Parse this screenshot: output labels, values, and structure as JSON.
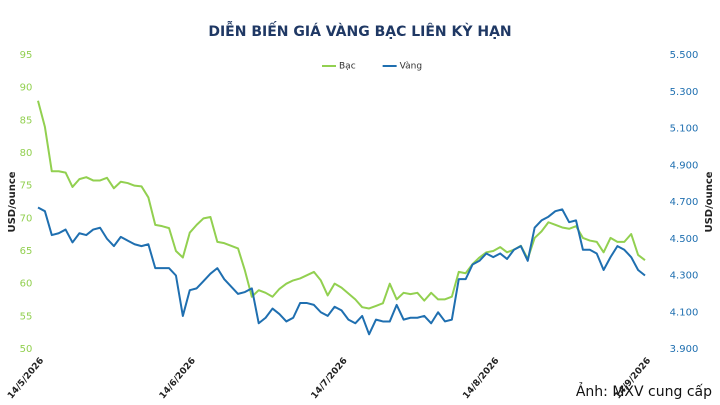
{
  "chart_data": {
    "type": "line",
    "title": "DIỄN BIẾN GIÁ VÀNG BẠC LIÊN KỲ HẠN",
    "ylabel": "USD/ounce",
    "y2label": "USD/ounce",
    "caption": "Ảnh: MXV cung cấp",
    "categories": [
      "14/5/2026",
      null,
      null,
      null,
      null,
      null,
      null,
      null,
      null,
      null,
      null,
      null,
      null,
      null,
      null,
      null,
      null,
      null,
      null,
      null,
      null,
      null,
      "14/6/2026",
      null,
      null,
      null,
      null,
      null,
      null,
      null,
      null,
      null,
      null,
      null,
      null,
      null,
      null,
      null,
      null,
      null,
      null,
      null,
      null,
      null,
      "14/7/2026",
      null,
      null,
      null,
      null,
      null,
      null,
      null,
      null,
      null,
      null,
      null,
      null,
      null,
      null,
      null,
      null,
      null,
      null,
      null,
      null,
      null,
      "14/8/2026",
      null,
      null,
      null,
      null,
      null,
      null,
      null,
      null,
      null,
      null,
      null,
      null,
      null,
      null,
      null,
      null,
      null,
      null,
      null,
      null,
      null,
      "14/9/2026"
    ],
    "series": [
      {
        "name": "Bạc",
        "color": "#92d050",
        "axis": "y",
        "values": [
          88,
          84,
          77.2,
          77.2,
          77,
          74.8,
          76,
          76.3,
          75.8,
          75.8,
          76.2,
          74.6,
          75.6,
          75.4,
          75,
          74.9,
          73.2,
          69,
          68.8,
          68.5,
          65,
          64,
          67.8,
          69,
          70,
          70.2,
          66.4,
          66.2,
          65.8,
          65.4,
          62,
          58,
          59,
          58.6,
          58,
          59.2,
          60,
          60.5,
          60.8,
          61.3,
          61.8,
          60.5,
          58.2,
          60,
          59.4,
          58.5,
          57.6,
          56.4,
          56.2,
          56.6,
          57,
          60,
          57.6,
          58.6,
          58.4,
          58.6,
          57.4,
          58.6,
          57.6,
          57.6,
          58,
          61.8,
          61.6,
          63,
          64,
          64.8,
          65,
          65.6,
          64.8,
          65.2,
          65.8,
          63.8,
          67,
          68,
          69.4,
          69,
          68.6,
          68.4,
          68.8,
          67,
          66.6,
          66.4,
          64.8,
          67,
          66.4,
          66.4,
          67.6,
          64.4,
          63.6
        ]
      },
      {
        "name": "Vàng",
        "color": "#1f6fb0",
        "axis": "y2",
        "values": [
          4670,
          4650,
          4520,
          4530,
          4550,
          4480,
          4530,
          4520,
          4550,
          4560,
          4500,
          4460,
          4510,
          4490,
          4470,
          4460,
          4470,
          4340,
          4340,
          4340,
          4300,
          4080,
          4220,
          4230,
          4270,
          4310,
          4340,
          4280,
          4240,
          4200,
          4210,
          4230,
          4040,
          4070,
          4120,
          4090,
          4050,
          4070,
          4150,
          4150,
          4140,
          4100,
          4080,
          4130,
          4110,
          4060,
          4040,
          4080,
          3980,
          4060,
          4050,
          4050,
          4140,
          4060,
          4070,
          4070,
          4080,
          4040,
          4100,
          4050,
          4060,
          4280,
          4280,
          4360,
          4380,
          4420,
          4400,
          4420,
          4390,
          4440,
          4460,
          4380,
          4560,
          4600,
          4620,
          4650,
          4660,
          4590,
          4600,
          4440,
          4440,
          4420,
          4330,
          4400,
          4460,
          4440,
          4400,
          4330,
          4300
        ]
      }
    ],
    "ylim": [
      50,
      95
    ],
    "yticks": [
      50,
      55,
      60,
      65,
      70,
      75,
      80,
      85,
      90,
      95
    ],
    "y2lim": [
      3900,
      5500
    ],
    "y2ticks": [
      {
        "value": 3900,
        "label": "3.900"
      },
      {
        "value": 4100,
        "label": "4.100"
      },
      {
        "value": 4300,
        "label": "4.300"
      },
      {
        "value": 4500,
        "label": "4.500"
      },
      {
        "value": 4700,
        "label": "4.700"
      },
      {
        "value": 4900,
        "label": "4.900"
      },
      {
        "value": 5100,
        "label": "5.100"
      },
      {
        "value": 5300,
        "label": "5.300"
      },
      {
        "value": 5500,
        "label": "5.500"
      }
    ],
    "legend": "top"
  }
}
